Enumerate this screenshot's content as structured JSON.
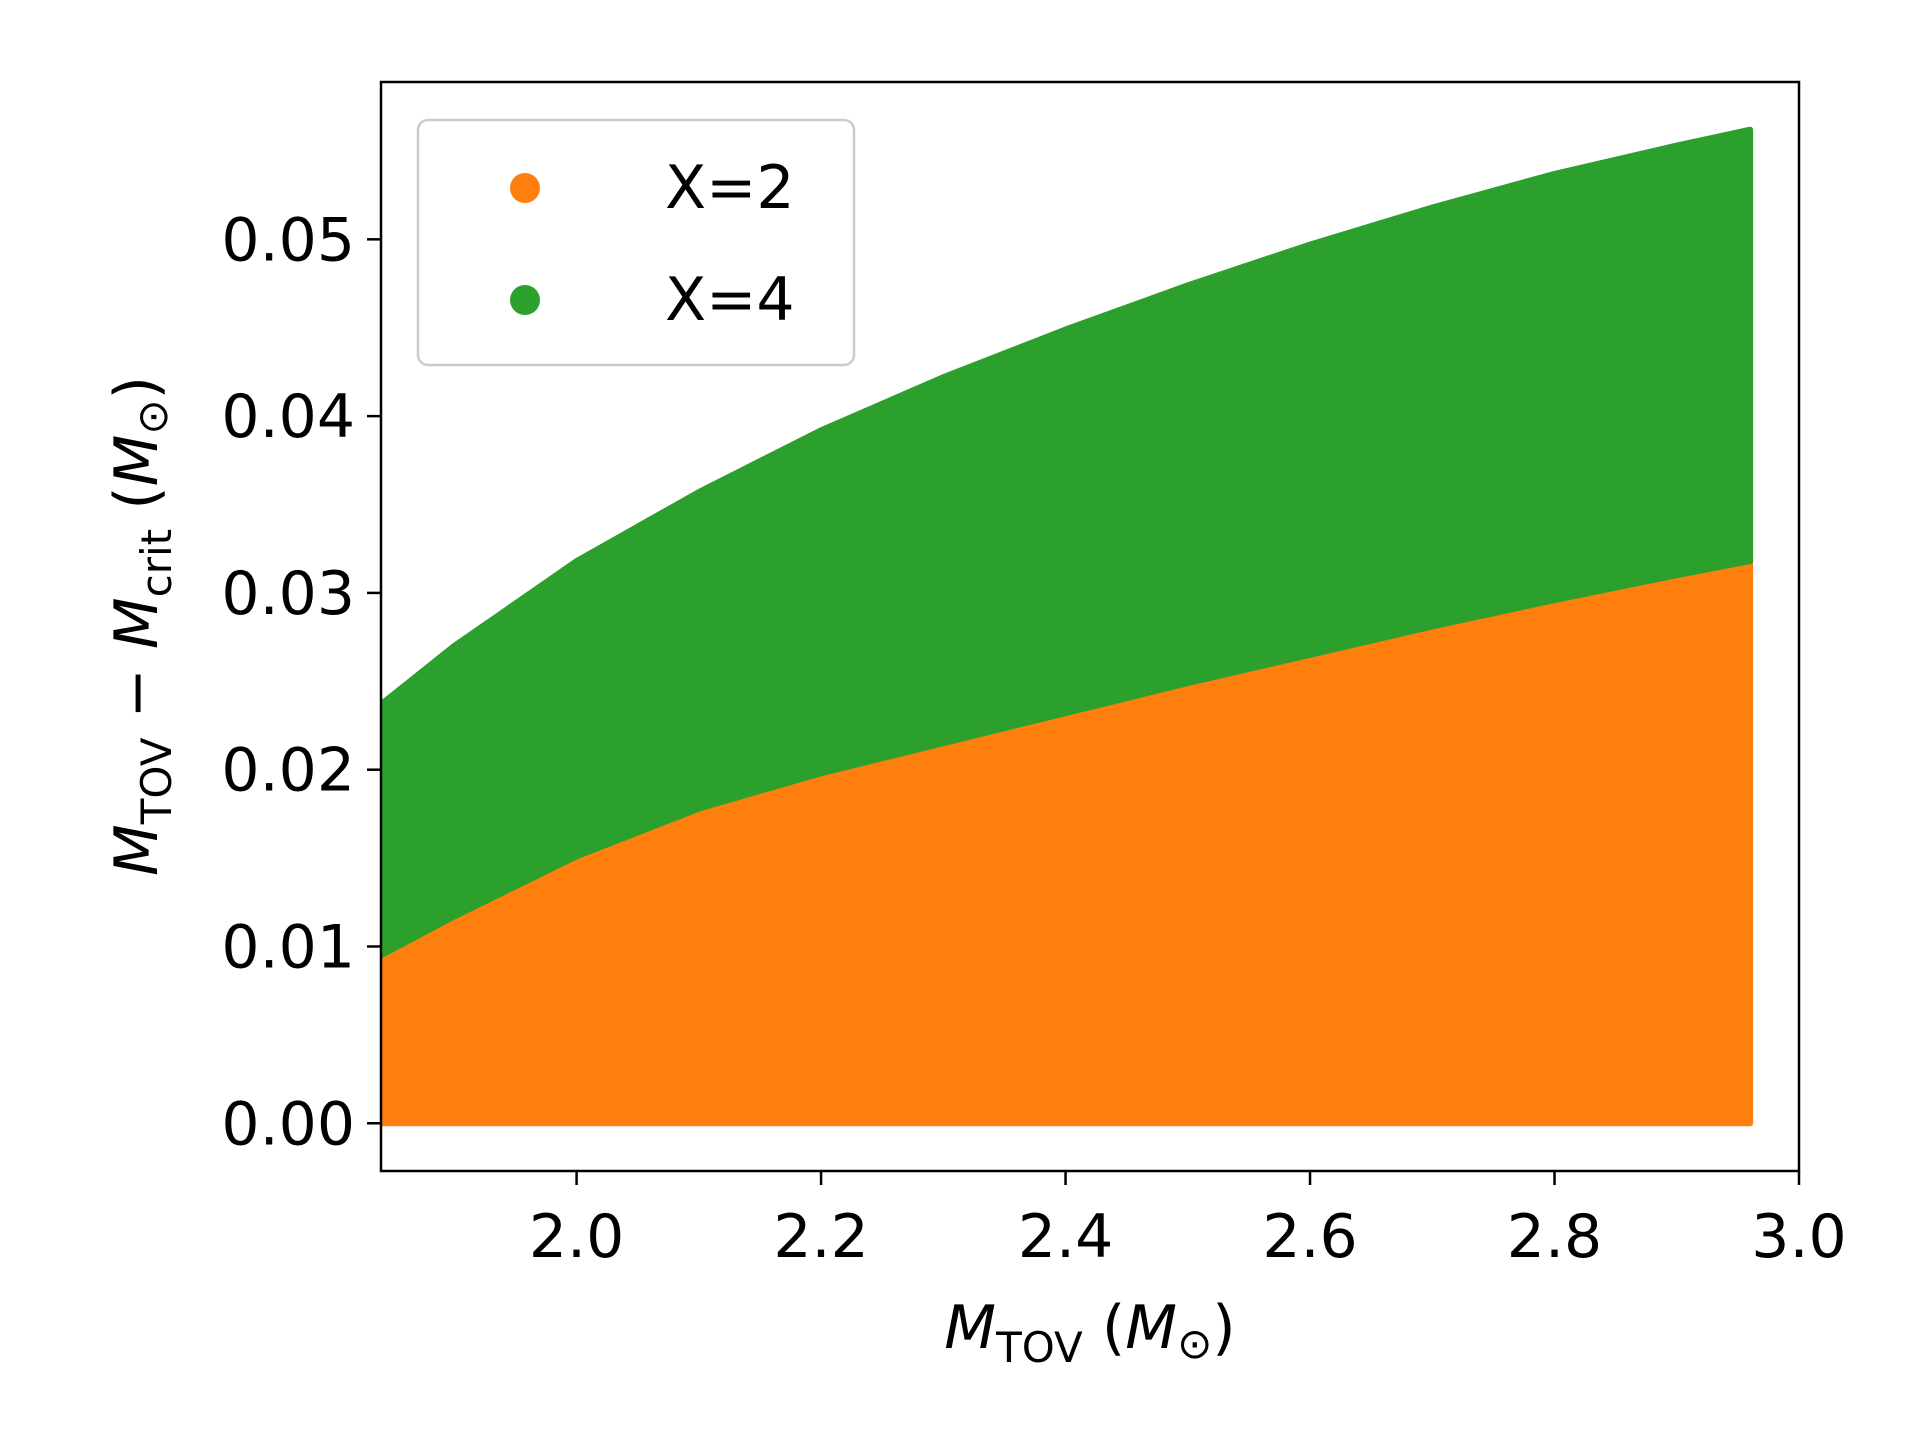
{
  "chart_data": {
    "type": "scatter",
    "title": "",
    "xlabel": {
      "main": "M",
      "sub": "TOV",
      "unit_open": " (",
      "unit_main": "M",
      "unit_sub": "⊙",
      "unit_close": ")"
    },
    "ylabel": {
      "main1": "M",
      "sub1": "TOV",
      "minus": " − ",
      "main2": "M",
      "sub2": "crit",
      "unit_open": " (",
      "unit_main": "M",
      "unit_sub": "⊙",
      "unit_close": ")"
    },
    "xlim": [
      1.84,
      3.0
    ],
    "ylim": [
      -0.0027,
      0.0589
    ],
    "xticks": [
      2.0,
      2.2,
      2.4,
      2.6,
      2.8,
      3.0
    ],
    "xtick_labels": [
      "2.0",
      "2.2",
      "2.4",
      "2.6",
      "2.8",
      "3.0"
    ],
    "yticks": [
      0.0,
      0.01,
      0.02,
      0.03,
      0.04,
      0.05
    ],
    "ytick_labels": [
      "0.00",
      "0.01",
      "0.02",
      "0.03",
      "0.04",
      "0.05"
    ],
    "grid": false,
    "legend_position": "top-left",
    "series": [
      {
        "name": "X=4",
        "color": "#2ca02c",
        "upper_boundary": [
          [
            1.84,
            0.0237
          ],
          [
            1.9,
            0.027
          ],
          [
            2.0,
            0.0318
          ],
          [
            2.1,
            0.0357
          ],
          [
            2.2,
            0.0392
          ],
          [
            2.3,
            0.0422
          ],
          [
            2.4,
            0.0449
          ],
          [
            2.5,
            0.0474
          ],
          [
            2.6,
            0.0497
          ],
          [
            2.7,
            0.0518
          ],
          [
            2.8,
            0.0537
          ],
          [
            2.9,
            0.0553
          ],
          [
            2.96,
            0.0562
          ]
        ],
        "lower_boundary": [
          [
            1.84,
            0.0095
          ],
          [
            1.9,
            0.0117
          ],
          [
            2.0,
            0.0151
          ],
          [
            2.1,
            0.0178
          ],
          [
            2.2,
            0.0198
          ],
          [
            2.3,
            0.0215
          ],
          [
            2.4,
            0.0232
          ],
          [
            2.5,
            0.0249
          ],
          [
            2.6,
            0.0265
          ],
          [
            2.7,
            0.0281
          ],
          [
            2.8,
            0.0296
          ],
          [
            2.9,
            0.031
          ],
          [
            2.96,
            0.0318
          ]
        ]
      },
      {
        "name": "X=2",
        "color": "#ff7f0e",
        "upper_boundary": [
          [
            1.84,
            0.0095
          ],
          [
            1.9,
            0.0117
          ],
          [
            2.0,
            0.0151
          ],
          [
            2.1,
            0.0178
          ],
          [
            2.2,
            0.0198
          ],
          [
            2.3,
            0.0215
          ],
          [
            2.4,
            0.0232
          ],
          [
            2.5,
            0.0249
          ],
          [
            2.6,
            0.0265
          ],
          [
            2.7,
            0.0281
          ],
          [
            2.8,
            0.0296
          ],
          [
            2.9,
            0.031
          ],
          [
            2.96,
            0.0318
          ]
        ],
        "lower_boundary": [
          [
            1.84,
            0.0
          ],
          [
            2.96,
            0.0
          ]
        ]
      }
    ]
  }
}
